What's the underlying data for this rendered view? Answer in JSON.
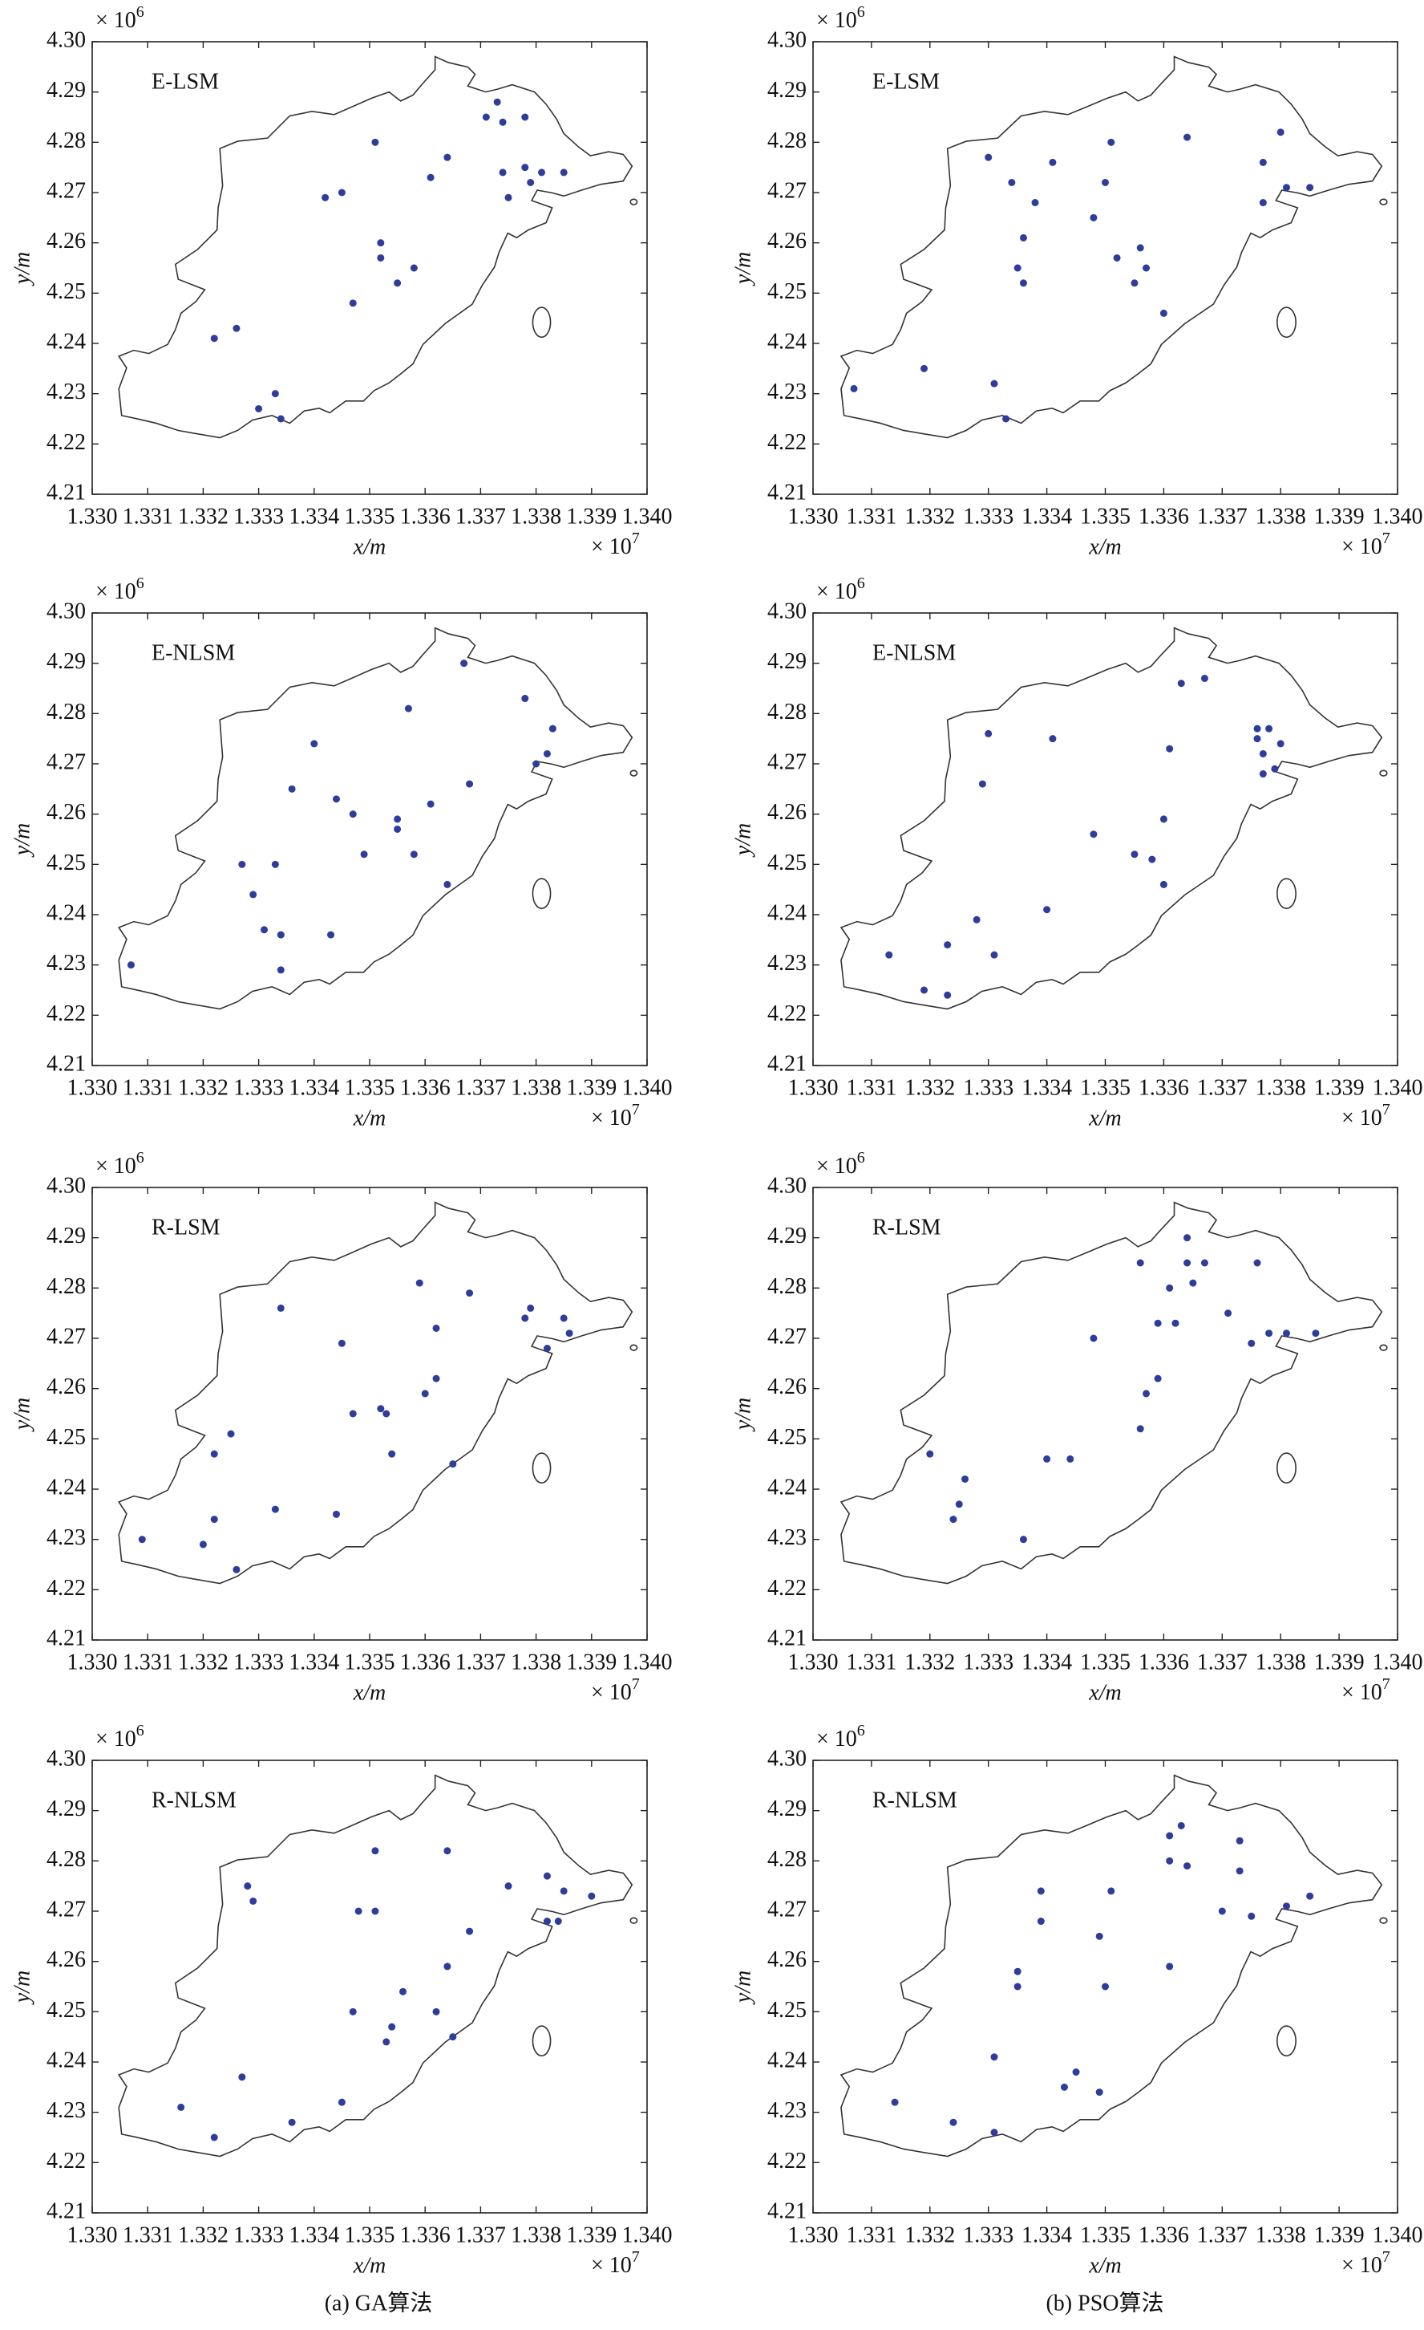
{
  "chart_data": [
    {
      "type": "scatter",
      "title": "E-LSM",
      "xlabel": "x/m",
      "ylabel": "y/m",
      "x_multiplier": "× 10",
      "x_exponent": "7",
      "y_multiplier": "× 10",
      "y_exponent": "6",
      "xlim": [
        1.33,
        1.34
      ],
      "ylim": [
        4.21,
        4.3
      ],
      "xticks": [
        {
          "value": 1.33,
          "label": "1.330"
        },
        1.331,
        1.332,
        1.333,
        1.334,
        1.335,
        1.336,
        1.337,
        1.338,
        1.339,
        {
          "value": 1.34,
          "label": "1.340"
        }
      ],
      "yticks": [
        4.21,
        4.22,
        4.23,
        4.24,
        4.25,
        4.26,
        4.27,
        4.28,
        4.29,
        {
          "value": 4.3,
          "label": "4.30"
        }
      ],
      "color": "#2e3d9c",
      "x": [
        1.3373,
        1.3371,
        1.3378,
        1.3374,
        1.3351,
        1.3364,
        1.3361,
        1.3378,
        1.3374,
        1.3379,
        1.3381,
        1.3385,
        1.3375,
        1.3342,
        1.3345,
        1.3352,
        1.3352,
        1.3358,
        1.3355,
        1.3347,
        1.3326,
        1.3322,
        1.3333,
        1.333,
        1.3334
      ],
      "values": [
        4.288,
        4.285,
        4.285,
        4.284,
        4.28,
        4.277,
        4.273,
        4.275,
        4.274,
        4.272,
        4.274,
        4.274,
        4.269,
        4.269,
        4.27,
        4.26,
        4.257,
        4.255,
        4.252,
        4.248,
        4.243,
        4.241,
        4.23,
        4.227,
        4.225
      ]
    },
    {
      "type": "scatter",
      "title": "E-LSM",
      "xlabel": "x/m",
      "ylabel": "y/m",
      "x_multiplier": "× 10",
      "x_exponent": "7",
      "y_multiplier": "× 10",
      "y_exponent": "6",
      "xlim": [
        1.33,
        1.34
      ],
      "ylim": [
        4.21,
        4.3
      ],
      "xticks": [
        {
          "value": 1.33,
          "label": "1.330"
        },
        1.331,
        1.332,
        1.333,
        1.334,
        1.335,
        1.336,
        1.337,
        1.338,
        1.339,
        {
          "value": 1.34,
          "label": "1.340"
        }
      ],
      "yticks": [
        4.21,
        4.22,
        4.23,
        4.24,
        4.25,
        4.26,
        4.27,
        4.28,
        4.29,
        {
          "value": 4.3,
          "label": "4.30"
        }
      ],
      "color": "#2e3d9c",
      "x": [
        1.3364,
        1.338,
        1.3351,
        1.3377,
        1.333,
        1.3341,
        1.3334,
        1.335,
        1.3381,
        1.3385,
        1.3377,
        1.3338,
        1.3348,
        1.3336,
        1.3356,
        1.3352,
        1.3357,
        1.3335,
        1.3355,
        1.3336,
        1.336,
        1.3319,
        1.3331,
        1.3307,
        1.3333
      ],
      "values": [
        4.281,
        4.282,
        4.28,
        4.276,
        4.277,
        4.276,
        4.272,
        4.272,
        4.271,
        4.271,
        4.268,
        4.268,
        4.265,
        4.261,
        4.259,
        4.257,
        4.255,
        4.255,
        4.252,
        4.252,
        4.246,
        4.235,
        4.232,
        4.231,
        4.225
      ]
    },
    {
      "type": "scatter",
      "title": "E-NLSM",
      "xlabel": "x/m",
      "ylabel": "y/m",
      "x_multiplier": "× 10",
      "x_exponent": "7",
      "y_multiplier": "× 10",
      "y_exponent": "6",
      "xlim": [
        1.33,
        1.34
      ],
      "ylim": [
        4.21,
        4.3
      ],
      "xticks": [
        {
          "value": 1.33,
          "label": "1.330"
        },
        1.331,
        1.332,
        1.333,
        1.334,
        1.335,
        1.336,
        1.337,
        1.338,
        1.339,
        {
          "value": 1.34,
          "label": "1.340"
        }
      ],
      "yticks": [
        4.21,
        4.22,
        4.23,
        4.24,
        4.25,
        4.26,
        4.27,
        4.28,
        4.29,
        {
          "value": 4.3,
          "label": "4.30"
        }
      ],
      "color": "#2e3d9c",
      "x": [
        1.3367,
        1.3357,
        1.3378,
        1.3383,
        1.3382,
        1.338,
        1.334,
        1.3368,
        1.3336,
        1.3344,
        1.3361,
        1.3347,
        1.3355,
        1.3355,
        1.3349,
        1.3358,
        1.3327,
        1.3333,
        1.3364,
        1.3329,
        1.3331,
        1.3334,
        1.3343,
        1.3334,
        1.3307
      ],
      "values": [
        4.29,
        4.281,
        4.283,
        4.277,
        4.272,
        4.27,
        4.274,
        4.266,
        4.265,
        4.263,
        4.262,
        4.26,
        4.259,
        4.257,
        4.252,
        4.252,
        4.25,
        4.25,
        4.246,
        4.244,
        4.237,
        4.236,
        4.236,
        4.229,
        4.23
      ]
    },
    {
      "type": "scatter",
      "title": "E-NLSM",
      "xlabel": "x/m",
      "ylabel": "y/m",
      "x_multiplier": "× 10",
      "x_exponent": "7",
      "y_multiplier": "× 10",
      "y_exponent": "6",
      "xlim": [
        1.33,
        1.34
      ],
      "ylim": [
        4.21,
        4.3
      ],
      "xticks": [
        {
          "value": 1.33,
          "label": "1.330"
        },
        1.331,
        1.332,
        1.333,
        1.334,
        1.335,
        1.336,
        1.337,
        1.338,
        1.339,
        {
          "value": 1.34,
          "label": "1.340"
        }
      ],
      "yticks": [
        4.21,
        4.22,
        4.23,
        4.24,
        4.25,
        4.26,
        4.27,
        4.28,
        4.29,
        {
          "value": 4.3,
          "label": "4.30"
        }
      ],
      "color": "#2e3d9c",
      "x": [
        1.3363,
        1.3367,
        1.3376,
        1.3378,
        1.333,
        1.3341,
        1.3376,
        1.338,
        1.3377,
        1.3361,
        1.3379,
        1.3377,
        1.3329,
        1.336,
        1.3348,
        1.3355,
        1.3358,
        1.336,
        1.334,
        1.3328,
        1.3323,
        1.3331,
        1.3313,
        1.3319,
        1.3323
      ],
      "values": [
        4.286,
        4.287,
        4.277,
        4.277,
        4.276,
        4.275,
        4.275,
        4.274,
        4.272,
        4.273,
        4.269,
        4.268,
        4.266,
        4.259,
        4.256,
        4.252,
        4.251,
        4.246,
        4.241,
        4.239,
        4.234,
        4.232,
        4.232,
        4.225,
        4.224
      ]
    },
    {
      "type": "scatter",
      "title": "R-LSM",
      "xlabel": "x/m",
      "ylabel": "y/m",
      "x_multiplier": "× 10",
      "x_exponent": "7",
      "y_multiplier": "× 10",
      "y_exponent": "6",
      "xlim": [
        1.33,
        1.34
      ],
      "ylim": [
        4.21,
        4.3
      ],
      "xticks": [
        {
          "value": 1.33,
          "label": "1.330"
        },
        1.331,
        1.332,
        1.333,
        1.334,
        1.335,
        1.336,
        1.337,
        1.338,
        1.339,
        {
          "value": 1.34,
          "label": "1.340"
        }
      ],
      "yticks": [
        4.21,
        4.22,
        4.23,
        4.24,
        4.25,
        4.26,
        4.27,
        4.28,
        4.29,
        {
          "value": 4.3,
          "label": "4.30"
        }
      ],
      "color": "#2e3d9c",
      "x": [
        1.3359,
        1.3368,
        1.3334,
        1.3379,
        1.3378,
        1.3385,
        1.3362,
        1.3386,
        1.3345,
        1.3382,
        1.3362,
        1.336,
        1.3352,
        1.3353,
        1.3347,
        1.3325,
        1.3354,
        1.3322,
        1.3365,
        1.3333,
        1.3344,
        1.3322,
        1.3309,
        1.332,
        1.3326
      ],
      "values": [
        4.281,
        4.279,
        4.276,
        4.276,
        4.274,
        4.274,
        4.272,
        4.271,
        4.269,
        4.268,
        4.262,
        4.259,
        4.256,
        4.255,
        4.255,
        4.251,
        4.247,
        4.247,
        4.245,
        4.236,
        4.235,
        4.234,
        4.23,
        4.229,
        4.224
      ]
    },
    {
      "type": "scatter",
      "title": "R-LSM",
      "xlabel": "x/m",
      "ylabel": "y/m",
      "x_multiplier": "× 10",
      "x_exponent": "7",
      "y_multiplier": "× 10",
      "y_exponent": "6",
      "xlim": [
        1.33,
        1.34
      ],
      "ylim": [
        4.21,
        4.3
      ],
      "xticks": [
        {
          "value": 1.33,
          "label": "1.330"
        },
        1.331,
        1.332,
        1.333,
        1.334,
        1.335,
        1.336,
        1.337,
        1.338,
        1.339,
        {
          "value": 1.34,
          "label": "1.340"
        }
      ],
      "yticks": [
        4.21,
        4.22,
        4.23,
        4.24,
        4.25,
        4.26,
        4.27,
        4.28,
        4.29,
        {
          "value": 4.3,
          "label": "4.30"
        }
      ],
      "color": "#2e3d9c",
      "x": [
        1.3364,
        1.3376,
        1.3356,
        1.3364,
        1.3367,
        1.3361,
        1.3365,
        1.3371,
        1.3359,
        1.3362,
        1.3381,
        1.3378,
        1.3386,
        1.3375,
        1.3348,
        1.3359,
        1.3357,
        1.3356,
        1.334,
        1.3344,
        1.332,
        1.3326,
        1.3325,
        1.3324,
        1.3336
      ],
      "values": [
        4.29,
        4.285,
        4.285,
        4.285,
        4.285,
        4.28,
        4.281,
        4.275,
        4.273,
        4.273,
        4.271,
        4.271,
        4.271,
        4.269,
        4.27,
        4.262,
        4.259,
        4.252,
        4.246,
        4.246,
        4.247,
        4.242,
        4.237,
        4.234,
        4.23
      ]
    },
    {
      "type": "scatter",
      "title": "R-NLSM",
      "xlabel": "x/m",
      "ylabel": "y/m",
      "x_multiplier": "× 10",
      "x_exponent": "7",
      "y_multiplier": "× 10",
      "y_exponent": "6",
      "xlim": [
        1.33,
        1.34
      ],
      "ylim": [
        4.21,
        4.3
      ],
      "xticks": [
        {
          "value": 1.33,
          "label": "1.330"
        },
        1.331,
        1.332,
        1.333,
        1.334,
        1.335,
        1.336,
        1.337,
        1.338,
        1.339,
        {
          "value": 1.34,
          "label": "1.340"
        }
      ],
      "yticks": [
        4.21,
        4.22,
        4.23,
        4.24,
        4.25,
        4.26,
        4.27,
        4.28,
        4.29,
        {
          "value": 4.3,
          "label": "4.30"
        }
      ],
      "color": "#2e3d9c",
      "x": [
        1.3351,
        1.3364,
        1.3328,
        1.3329,
        1.3375,
        1.3382,
        1.3385,
        1.339,
        1.3348,
        1.3351,
        1.3382,
        1.3384,
        1.3368,
        1.3364,
        1.3356,
        1.3362,
        1.3347,
        1.3354,
        1.3365,
        1.3353,
        1.3327,
        1.3316,
        1.3345,
        1.3336,
        1.3322
      ],
      "values": [
        4.282,
        4.282,
        4.275,
        4.272,
        4.275,
        4.277,
        4.274,
        4.273,
        4.27,
        4.27,
        4.268,
        4.268,
        4.266,
        4.259,
        4.254,
        4.25,
        4.25,
        4.247,
        4.245,
        4.244,
        4.237,
        4.231,
        4.232,
        4.228,
        4.225
      ]
    },
    {
      "type": "scatter",
      "title": "R-NLSM",
      "xlabel": "x/m",
      "ylabel": "y/m",
      "x_multiplier": "× 10",
      "x_exponent": "7",
      "y_multiplier": "× 10",
      "y_exponent": "6",
      "xlim": [
        1.33,
        1.34
      ],
      "ylim": [
        4.21,
        4.3
      ],
      "xticks": [
        {
          "value": 1.33,
          "label": "1.330"
        },
        1.331,
        1.332,
        1.333,
        1.334,
        1.335,
        1.336,
        1.337,
        1.338,
        1.339,
        {
          "value": 1.34,
          "label": "1.340"
        }
      ],
      "yticks": [
        4.21,
        4.22,
        4.23,
        4.24,
        4.25,
        4.26,
        4.27,
        4.28,
        4.29,
        {
          "value": 4.3,
          "label": "4.30"
        }
      ],
      "color": "#2e3d9c",
      "x": [
        1.3363,
        1.3361,
        1.3373,
        1.3361,
        1.3364,
        1.3373,
        1.3339,
        1.3351,
        1.337,
        1.3375,
        1.3385,
        1.3381,
        1.3339,
        1.3349,
        1.3361,
        1.3335,
        1.3335,
        1.335,
        1.3331,
        1.3345,
        1.3343,
        1.3349,
        1.3314,
        1.3324,
        1.3331
      ],
      "values": [
        4.287,
        4.285,
        4.284,
        4.28,
        4.279,
        4.278,
        4.274,
        4.274,
        4.27,
        4.269,
        4.273,
        4.271,
        4.268,
        4.265,
        4.259,
        4.258,
        4.255,
        4.255,
        4.241,
        4.238,
        4.235,
        4.234,
        4.232,
        4.228,
        4.226
      ]
    }
  ],
  "captions": [
    "(a) GA算法",
    "(b) PSO算法"
  ]
}
